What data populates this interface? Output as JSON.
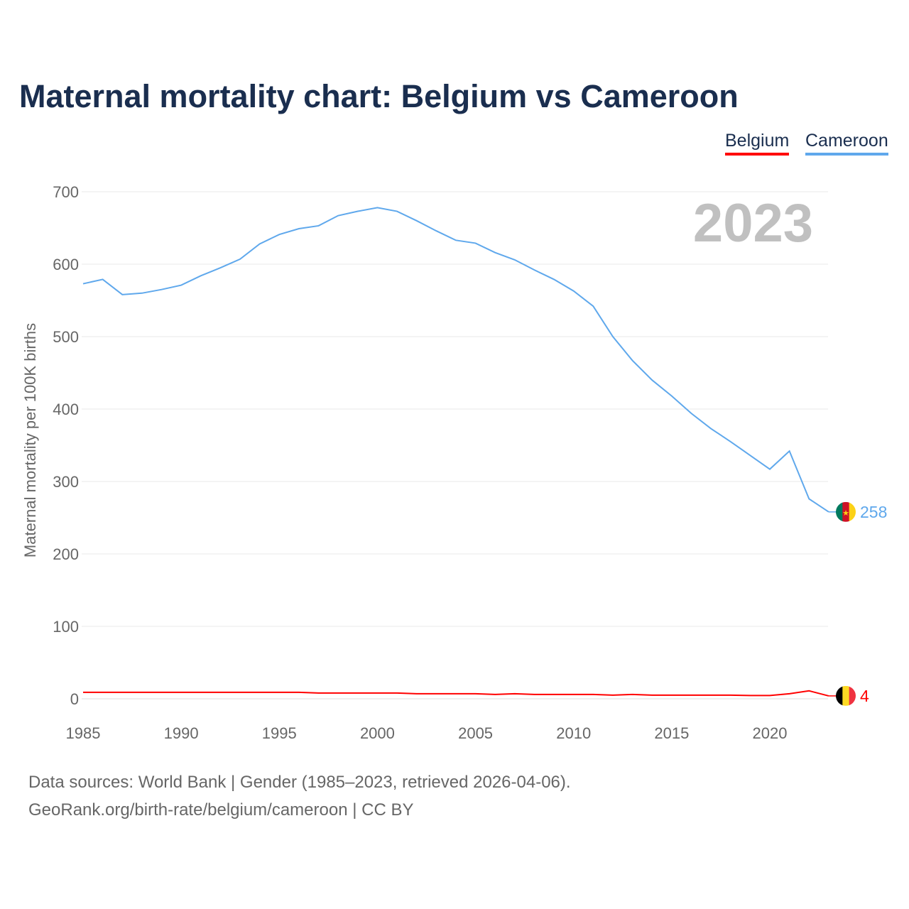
{
  "chart_data": {
    "type": "line",
    "title": "Maternal mortality chart: Belgium vs Cameroon",
    "ylabel": "Maternal mortality per 100K births",
    "xlabel": "",
    "year_label": "2023",
    "ylim": [
      0,
      700
    ],
    "xlim": [
      1985,
      2023
    ],
    "yticks": [
      0,
      100,
      200,
      300,
      400,
      500,
      600,
      700
    ],
    "xticks": [
      1985,
      1990,
      1995,
      2000,
      2005,
      2010,
      2015,
      2020
    ],
    "grid": true,
    "legend_placement": "top-right",
    "x": [
      1985,
      1986,
      1987,
      1988,
      1989,
      1990,
      1991,
      1992,
      1993,
      1994,
      1995,
      1996,
      1997,
      1998,
      1999,
      2000,
      2001,
      2002,
      2003,
      2004,
      2005,
      2006,
      2007,
      2008,
      2009,
      2010,
      2011,
      2012,
      2013,
      2014,
      2015,
      2016,
      2017,
      2018,
      2019,
      2020,
      2021,
      2022,
      2023
    ],
    "series": [
      {
        "name": "Belgium",
        "color": "#ff0000",
        "end_label": "4",
        "values": [
          9,
          9,
          9,
          9,
          9,
          9,
          9,
          9,
          9,
          9,
          9,
          9,
          8,
          8,
          8,
          8,
          8,
          7,
          7,
          7,
          7,
          6,
          7,
          6,
          6,
          6,
          6,
          5,
          6,
          5,
          5,
          5,
          5,
          5,
          4.5,
          4.5,
          7,
          11,
          4
        ]
      },
      {
        "name": "Cameroon",
        "color": "#5fa8ec",
        "end_label": "258",
        "values": [
          573,
          579,
          558,
          560,
          565,
          571,
          584,
          595,
          607,
          628,
          641,
          649,
          653,
          667,
          673,
          678,
          673,
          660,
          646,
          633,
          629,
          616,
          606,
          592,
          579,
          563,
          542,
          500,
          467,
          440,
          418,
          394,
          373,
          355,
          336,
          317,
          342,
          276,
          258
        ]
      }
    ]
  },
  "footer": {
    "source": "Data sources: World Bank | Gender (1985–2023, retrieved 2026-04-06).",
    "link": "GeoRank.org/birth-rate/belgium/cameroon | CC BY"
  }
}
